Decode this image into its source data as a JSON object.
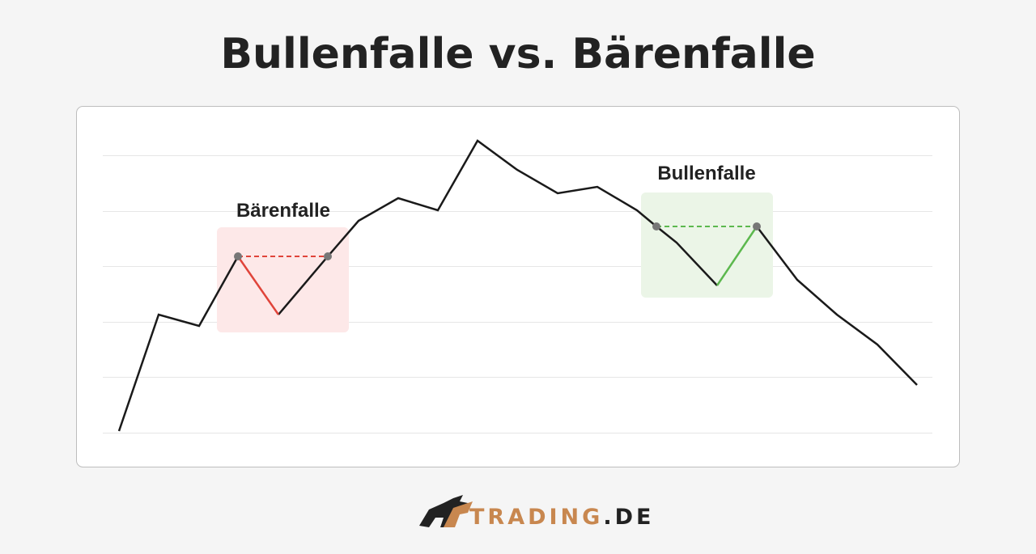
{
  "header": {
    "title": "Bullenfalle vs. Bärenfalle"
  },
  "labels": {
    "bear_trap": "Bärenfalle",
    "bull_trap": "Bullenfalle"
  },
  "logo": {
    "brand": "TRADING",
    "suffix": ".DE"
  }
}
